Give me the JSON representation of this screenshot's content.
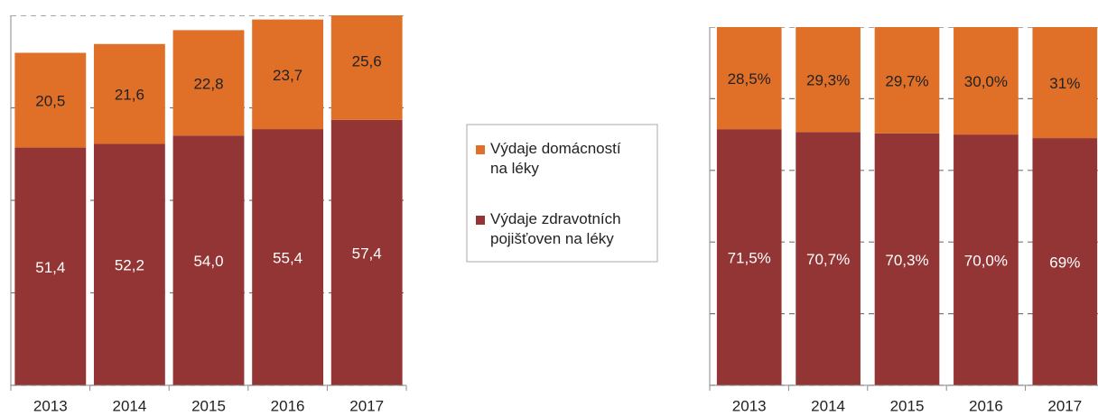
{
  "chart_data": [
    {
      "type": "stacked_bar",
      "categories": [
        "2013",
        "2014",
        "2015",
        "2016",
        "2017"
      ],
      "series": [
        {
          "name": "Výdaje zdravotních pojišťoven na léky",
          "color": "#943535",
          "values": [
            51.4,
            52.2,
            54.0,
            55.4,
            57.4
          ],
          "value_labels": [
            "51,4",
            "52,2",
            "54,0",
            "55,4",
            "57,4"
          ]
        },
        {
          "name": "Výdaje domácností na léky",
          "color": "#e07028",
          "values": [
            20.5,
            21.6,
            22.8,
            23.7,
            25.6
          ],
          "value_labels": [
            "20,5",
            "21,6",
            "22,8",
            "23,7",
            "25,6"
          ]
        }
      ],
      "ylim": [
        0,
        80
      ],
      "yticks": [
        0,
        20,
        40,
        60,
        80
      ],
      "grid": true
    },
    {
      "type": "stacked_bar",
      "categories": [
        "2013",
        "2014",
        "2015",
        "2016",
        "2017"
      ],
      "series": [
        {
          "color": "#943535",
          "values": [
            71.5,
            70.7,
            70.3,
            70.0,
            69
          ],
          "value_labels": [
            "71,5%",
            "70,7%",
            "70,3%",
            "70,0%",
            "69%"
          ]
        },
        {
          "color": "#e07028",
          "values": [
            28.5,
            29.3,
            29.7,
            30.0,
            31
          ],
          "value_labels": [
            "28,5%",
            "29,3%",
            "29,7%",
            "30,0%",
            "31%"
          ]
        }
      ],
      "ylim": [
        0,
        100
      ],
      "yticks": [
        0,
        20,
        40,
        60,
        80,
        100
      ],
      "grid": true
    }
  ]
}
